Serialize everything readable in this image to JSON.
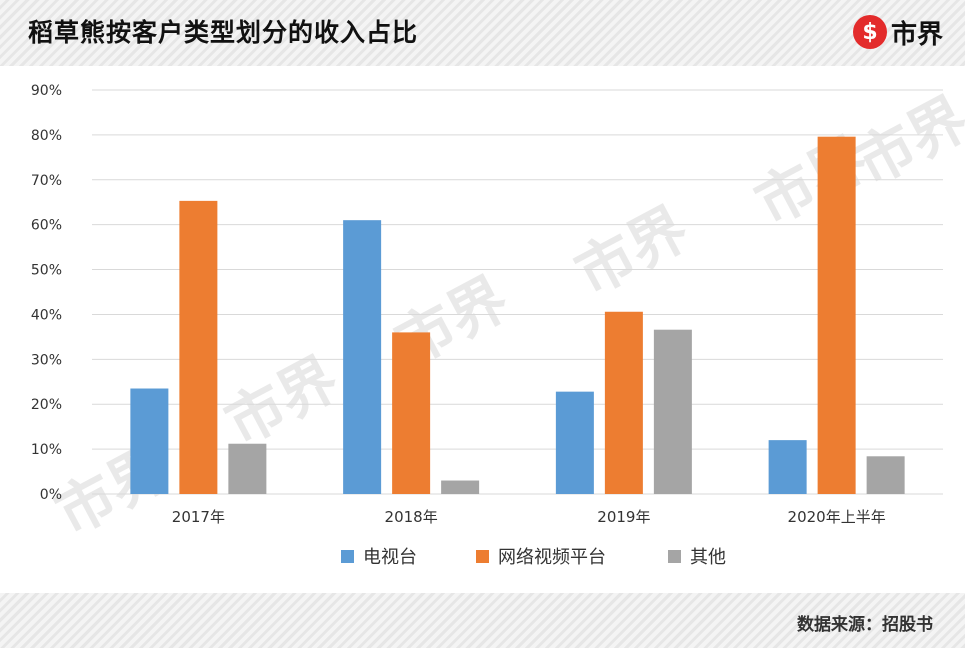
{
  "header": {
    "title": "稻草熊按客户类型划分的收入占比",
    "logo_glyph": "$",
    "logo_text": "市界"
  },
  "footer": {
    "source": "数据来源：招股书"
  },
  "watermark": "市界",
  "colors": {
    "series": [
      "#5b9bd5",
      "#ed7d31",
      "#a5a5a5"
    ],
    "grid": "#d9d9d9",
    "logo": "#e32b2b"
  },
  "chart_data": {
    "type": "bar",
    "title": "稻草熊按客户类型划分的收入占比",
    "categories": [
      "2017年",
      "2018年",
      "2019年",
      "2020年上半年"
    ],
    "series": [
      {
        "name": "电视台",
        "values": [
          23.5,
          61,
          22.8,
          12
        ]
      },
      {
        "name": "网络视频平台",
        "values": [
          65.3,
          36,
          40.6,
          79.6
        ]
      },
      {
        "name": "其他",
        "values": [
          11.2,
          3,
          36.6,
          8.4
        ]
      }
    ],
    "y_ticks": [
      "0%",
      "10%",
      "20%",
      "30%",
      "40%",
      "50%",
      "60%",
      "70%",
      "80%",
      "90%"
    ],
    "ylim": [
      0,
      90
    ],
    "ylabel": "",
    "xlabel": "",
    "grid": true,
    "legend_position": "bottom"
  }
}
